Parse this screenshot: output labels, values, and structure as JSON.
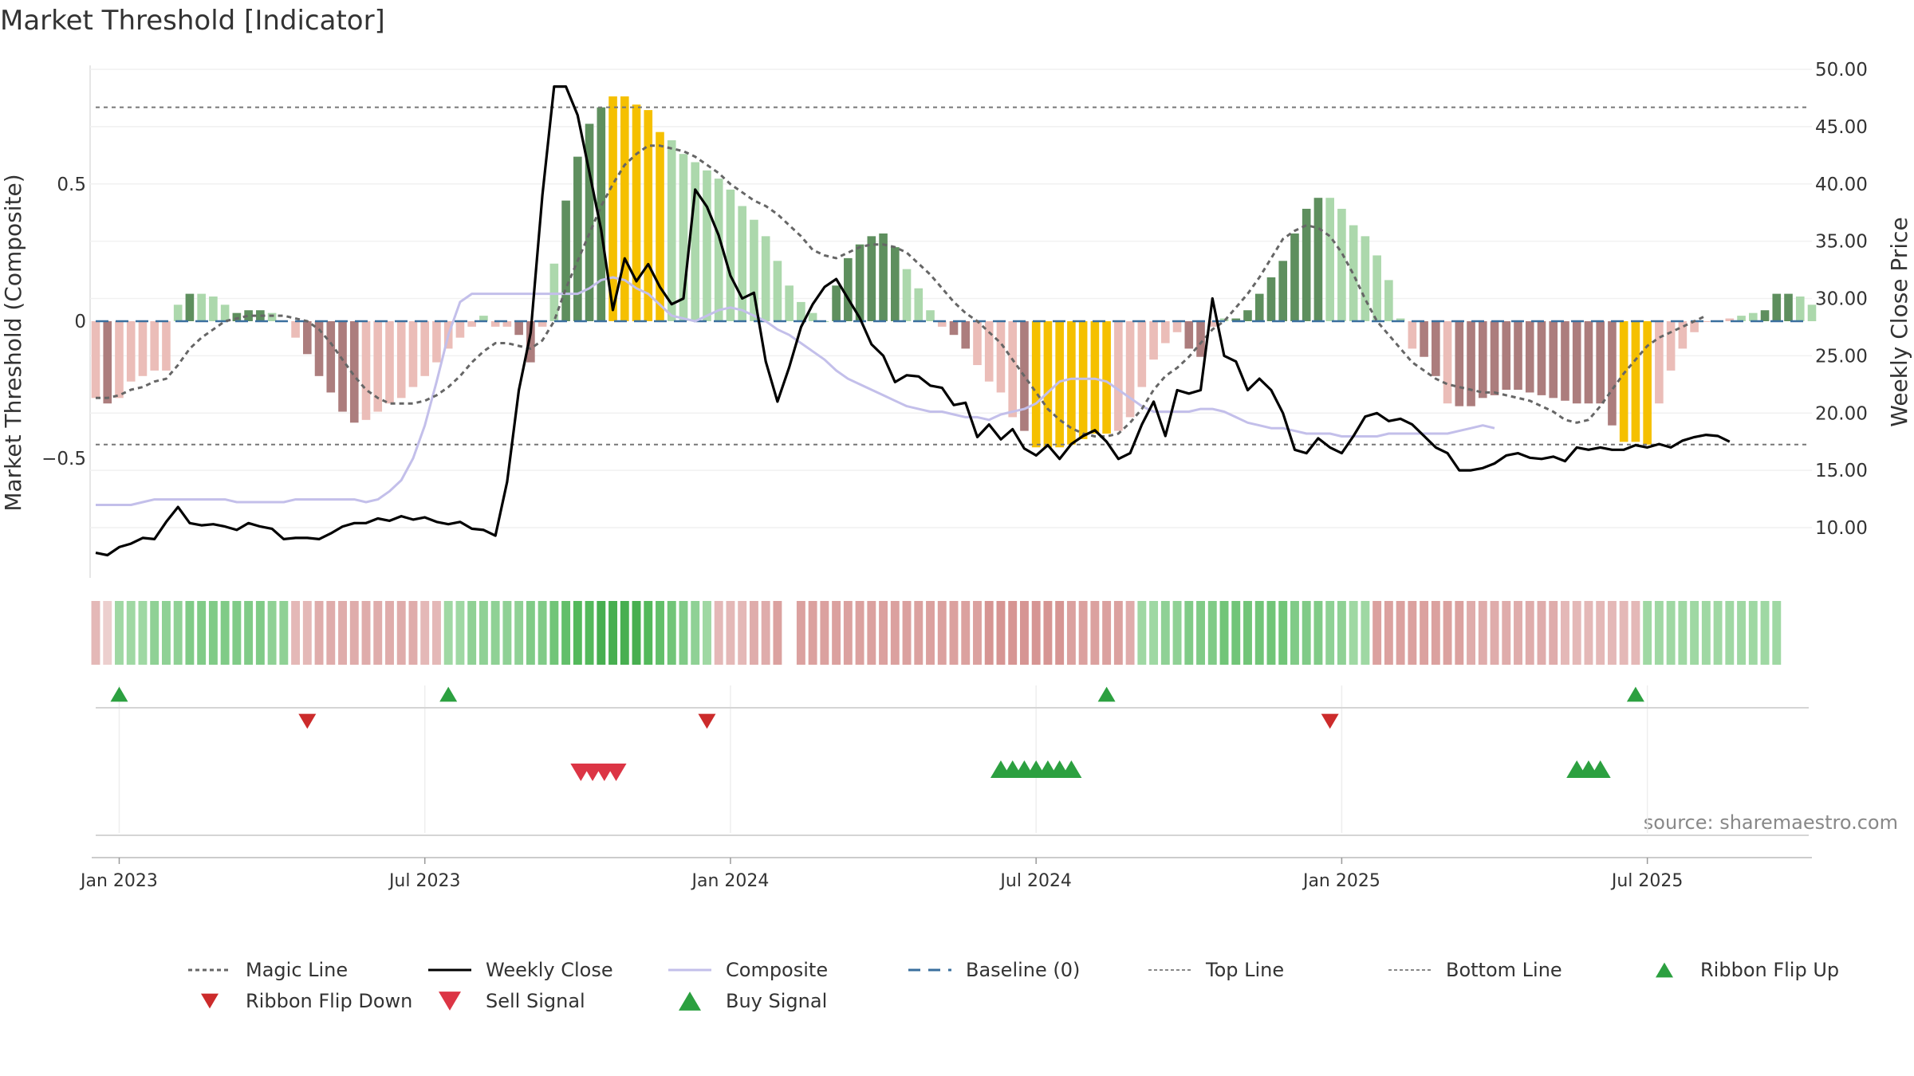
{
  "chart_data": {
    "type": "bar",
    "title": "Market Threshold [Indicator]",
    "ylabel": "Market Threshold (Composite)",
    "ylabel_right": "Weekly Close Price",
    "ylim": [
      -0.93,
      0.93
    ],
    "ylim_right": [
      4.8,
      51.0
    ],
    "y_ticks": [
      {
        "label": "0.5",
        "value": 0.5
      },
      {
        "label": "0",
        "value": 0
      },
      {
        "label": "−0.5",
        "value": -0.5
      }
    ],
    "y_right_ticks": [
      "10.00",
      "15.00",
      "20.00",
      "25.00",
      "30.00",
      "35.00",
      "40.00",
      "45.00",
      "50.00"
    ],
    "x_ticks": [
      {
        "label": "Jan 2023",
        "week": 2
      },
      {
        "label": "Jul 2023",
        "week": 28
      },
      {
        "label": "Jan 2024",
        "week": 54
      },
      {
        "label": "Jul 2024",
        "week": 80
      },
      {
        "label": "Jan 2025",
        "week": 106
      },
      {
        "label": "Jul 2025",
        "week": 132
      }
    ],
    "top_line": 0.78,
    "bottom_line": -0.45,
    "baseline": 0,
    "grid": true,
    "source": "source: sharemaestro.com",
    "colors": {
      "strong_pos": "#5e8f5e",
      "weak_pos": "#acd8ac",
      "strong_neg": "#ac7d7d",
      "weak_neg": "#ebbdb8",
      "signal": "#f5c000",
      "magic": "#666666",
      "close": "#000000",
      "composite": "#c3bfea",
      "baseline": "#3a6f9e",
      "ribbon_flip_up": "#2ca040",
      "ribbon_flip_down": "#cc2b2b",
      "sell": "#dc3545",
      "buy": "#2ca040"
    },
    "bars": [
      -0.28,
      -0.3,
      -0.28,
      -0.22,
      -0.2,
      -0.18,
      -0.18,
      0.06,
      0.1,
      0.1,
      0.09,
      0.06,
      0.03,
      0.04,
      0.04,
      0.03,
      0.0,
      -0.06,
      -0.12,
      -0.2,
      -0.26,
      -0.33,
      -0.37,
      -0.36,
      -0.33,
      -0.3,
      -0.28,
      -0.24,
      -0.2,
      -0.15,
      -0.1,
      -0.06,
      -0.02,
      0.02,
      -0.02,
      -0.02,
      -0.05,
      -0.15,
      -0.02,
      0.21,
      0.44,
      0.6,
      0.72,
      0.78,
      0.82,
      0.82,
      0.79,
      0.77,
      0.69,
      0.66,
      0.61,
      0.58,
      0.55,
      0.52,
      0.48,
      0.42,
      0.37,
      0.31,
      0.22,
      0.13,
      0.07,
      0.03,
      0.0,
      0.13,
      0.23,
      0.28,
      0.31,
      0.32,
      0.27,
      0.19,
      0.12,
      0.04,
      -0.02,
      -0.05,
      -0.1,
      -0.16,
      -0.22,
      -0.26,
      -0.35,
      -0.4,
      -0.46,
      -0.46,
      -0.46,
      -0.45,
      -0.43,
      -0.41,
      -0.41,
      -0.4,
      -0.35,
      -0.24,
      -0.14,
      -0.08,
      -0.04,
      -0.1,
      -0.13,
      -0.02,
      0.01,
      0.01,
      0.04,
      0.1,
      0.16,
      0.22,
      0.32,
      0.41,
      0.45,
      0.45,
      0.41,
      0.35,
      0.31,
      0.24,
      0.15,
      0.01,
      -0.1,
      -0.13,
      -0.2,
      -0.3,
      -0.31,
      -0.31,
      -0.28,
      -0.27,
      -0.25,
      -0.25,
      -0.26,
      -0.27,
      -0.28,
      -0.29,
      -0.3,
      -0.3,
      -0.3,
      -0.38,
      -0.44,
      -0.44,
      -0.45,
      -0.3,
      -0.18,
      -0.1,
      -0.04,
      0.0,
      0.0,
      0.01,
      0.02,
      0.03,
      0.04,
      0.1,
      0.1,
      0.09,
      0.06
    ],
    "bar_category": [
      "wn",
      "sn",
      "wn",
      "wn",
      "wn",
      "wn",
      "wn",
      "wp",
      "sp",
      "wp",
      "wp",
      "wp",
      "sp",
      "sp",
      "sp",
      "wp",
      "wn",
      "wn",
      "sn",
      "sn",
      "sn",
      "sn",
      "sn",
      "wn",
      "wn",
      "wn",
      "wn",
      "wn",
      "wn",
      "wn",
      "wn",
      "wn",
      "wn",
      "wp",
      "wn",
      "wn",
      "sn",
      "sn",
      "wn",
      "wp",
      "sp",
      "sp",
      "sp",
      "sp",
      "sig",
      "sig",
      "sig",
      "sig",
      "sig",
      "wp",
      "wp",
      "wp",
      "wp",
      "wp",
      "wp",
      "wp",
      "wp",
      "wp",
      "wp",
      "wp",
      "wp",
      "wp",
      "wp",
      "sp",
      "sp",
      "sp",
      "sp",
      "sp",
      "sp",
      "wp",
      "wp",
      "wp",
      "wn",
      "sn",
      "sn",
      "wn",
      "wn",
      "wn",
      "wn",
      "sn",
      "sig",
      "sig",
      "sig",
      "sig",
      "sig",
      "sig",
      "sig",
      "wn",
      "wn",
      "wn",
      "wn",
      "wn",
      "wn",
      "sn",
      "sn",
      "wn",
      "wp",
      "sp",
      "sp",
      "sp",
      "sp",
      "sp",
      "sp",
      "sp",
      "sp",
      "wp",
      "wp",
      "wp",
      "wp",
      "wp",
      "wp",
      "wp",
      "wn",
      "sn",
      "sn",
      "wn",
      "sn",
      "sn",
      "sn",
      "sn",
      "sn",
      "sn",
      "sn",
      "sn",
      "sn",
      "sn",
      "sn",
      "sn",
      "sn",
      "sn",
      "sig",
      "sig",
      "sig",
      "wn",
      "wn",
      "wn",
      "wn",
      "wn",
      "wn",
      "wn",
      "wp",
      "wp",
      "sp",
      "sp",
      "sp",
      "wp",
      "wp"
    ],
    "magic_line": [
      -0.28,
      -0.28,
      -0.27,
      -0.25,
      -0.24,
      -0.22,
      -0.21,
      -0.16,
      -0.1,
      -0.06,
      -0.03,
      0.0,
      0.01,
      0.02,
      0.02,
      0.02,
      0.02,
      0.01,
      0.0,
      -0.03,
      -0.08,
      -0.14,
      -0.2,
      -0.25,
      -0.28,
      -0.3,
      -0.3,
      -0.3,
      -0.29,
      -0.27,
      -0.24,
      -0.2,
      -0.15,
      -0.11,
      -0.08,
      -0.08,
      -0.09,
      -0.1,
      -0.07,
      0.0,
      0.12,
      0.22,
      0.32,
      0.42,
      0.5,
      0.57,
      0.61,
      0.64,
      0.64,
      0.63,
      0.62,
      0.6,
      0.57,
      0.54,
      0.5,
      0.47,
      0.44,
      0.42,
      0.39,
      0.35,
      0.31,
      0.26,
      0.24,
      0.23,
      0.25,
      0.27,
      0.28,
      0.28,
      0.27,
      0.25,
      0.21,
      0.17,
      0.12,
      0.07,
      0.03,
      0.0,
      -0.04,
      -0.08,
      -0.14,
      -0.2,
      -0.26,
      -0.32,
      -0.36,
      -0.39,
      -0.41,
      -0.42,
      -0.42,
      -0.41,
      -0.37,
      -0.32,
      -0.25,
      -0.2,
      -0.17,
      -0.13,
      -0.08,
      -0.03,
      0.0,
      0.05,
      0.1,
      0.16,
      0.23,
      0.3,
      0.33,
      0.35,
      0.34,
      0.31,
      0.25,
      0.17,
      0.08,
      0.0,
      -0.05,
      -0.1,
      -0.15,
      -0.18,
      -0.21,
      -0.23,
      -0.24,
      -0.25,
      -0.26,
      -0.26,
      -0.27,
      -0.28,
      -0.29,
      -0.31,
      -0.33,
      -0.36,
      -0.37,
      -0.36,
      -0.31,
      -0.25,
      -0.19,
      -0.14,
      -0.09,
      -0.06,
      -0.04,
      -0.02,
      0.0,
      0.02
    ],
    "weekly_close": [
      7.8,
      7.6,
      8.3,
      8.6,
      9.1,
      9.0,
      10.5,
      11.8,
      10.4,
      10.2,
      10.3,
      10.1,
      9.8,
      10.4,
      10.1,
      9.9,
      9.0,
      9.1,
      9.1,
      9.0,
      9.5,
      10.1,
      10.4,
      10.4,
      10.8,
      10.6,
      11.0,
      10.7,
      10.9,
      10.5,
      10.3,
      10.5,
      9.9,
      9.8,
      9.3,
      14.0,
      22.0,
      27.0,
      39.0,
      48.5,
      48.5,
      46.0,
      41.0,
      36.0,
      29.0,
      33.5,
      31.5,
      33.0,
      31.0,
      29.5,
      30.0,
      39.5,
      38.0,
      35.5,
      32.0,
      30.0,
      30.5,
      24.5,
      21.0,
      24.0,
      27.5,
      29.5,
      31.0,
      31.7,
      30.0,
      28.3,
      26.0,
      25.0,
      22.7,
      23.3,
      23.2,
      22.4,
      22.2,
      20.7,
      20.9,
      17.9,
      19.0,
      17.7,
      18.6,
      16.9,
      16.3,
      17.2,
      16.0,
      17.3,
      18.0,
      18.5,
      17.5,
      16.0,
      16.5,
      19.0,
      21.0,
      18.0,
      22.0,
      21.7,
      22.0,
      30.0,
      25.0,
      24.5,
      22.0,
      23.0,
      22.0,
      20.0,
      16.8,
      16.5,
      17.8,
      17.0,
      16.5,
      18.0,
      19.7,
      20.0,
      19.3,
      19.5,
      19.0,
      18.0,
      17.0,
      16.5,
      15.0,
      15.0,
      15.2,
      15.6,
      16.3,
      16.5,
      16.1,
      16.0,
      16.2,
      15.8,
      17.0,
      16.8,
      17.0,
      16.8,
      16.8,
      17.2,
      17.0,
      17.3,
      17.0,
      17.6,
      17.9,
      18.1,
      18.0,
      17.5
    ],
    "composite": [
      -0.67,
      -0.67,
      -0.67,
      -0.67,
      -0.66,
      -0.65,
      -0.65,
      -0.65,
      -0.65,
      -0.65,
      -0.65,
      -0.65,
      -0.66,
      -0.66,
      -0.66,
      -0.66,
      -0.66,
      -0.65,
      -0.65,
      -0.65,
      -0.65,
      -0.65,
      -0.65,
      -0.66,
      -0.65,
      -0.62,
      -0.58,
      -0.5,
      -0.38,
      -0.22,
      -0.05,
      0.07,
      0.1,
      0.1,
      0.1,
      0.1,
      0.1,
      0.1,
      0.1,
      0.1,
      0.1,
      0.1,
      0.12,
      0.15,
      0.16,
      0.15,
      0.12,
      0.1,
      0.06,
      0.02,
      0.01,
      0.0,
      0.02,
      0.04,
      0.05,
      0.04,
      0.02,
      0.0,
      -0.03,
      -0.05,
      -0.08,
      -0.11,
      -0.14,
      -0.18,
      -0.21,
      -0.23,
      -0.25,
      -0.27,
      -0.29,
      -0.31,
      -0.32,
      -0.33,
      -0.33,
      -0.34,
      -0.35,
      -0.35,
      -0.36,
      -0.34,
      -0.33,
      -0.32,
      -0.3,
      -0.26,
      -0.22,
      -0.21,
      -0.21,
      -0.21,
      -0.22,
      -0.25,
      -0.28,
      -0.31,
      -0.33,
      -0.33,
      -0.33,
      -0.33,
      -0.32,
      -0.32,
      -0.33,
      -0.35,
      -0.37,
      -0.38,
      -0.39,
      -0.39,
      -0.4,
      -0.41,
      -0.41,
      -0.41,
      -0.42,
      -0.42,
      -0.42,
      -0.42,
      -0.41,
      -0.41,
      -0.41,
      -0.41,
      -0.41,
      -0.41,
      -0.4,
      -0.39,
      -0.38,
      -0.39
    ],
    "ribbon": [
      -0.3,
      -0.1,
      0.3,
      0.3,
      0.3,
      0.4,
      0.4,
      0.4,
      0.5,
      0.5,
      0.5,
      0.5,
      0.5,
      0.5,
      0.5,
      0.4,
      0.4,
      -0.3,
      -0.3,
      -0.4,
      -0.4,
      -0.4,
      -0.4,
      -0.4,
      -0.4,
      -0.4,
      -0.4,
      -0.4,
      -0.3,
      -0.3,
      0.3,
      0.3,
      0.4,
      0.4,
      0.4,
      0.4,
      0.4,
      0.5,
      0.5,
      0.6,
      0.7,
      0.8,
      0.8,
      0.9,
      0.9,
      0.9,
      0.9,
      0.8,
      0.7,
      0.6,
      0.5,
      0.4,
      0.3,
      -0.3,
      -0.3,
      -0.3,
      -0.4,
      -0.4,
      -0.5,
      null,
      -0.5,
      -0.5,
      -0.5,
      -0.5,
      -0.5,
      -0.5,
      -0.5,
      -0.5,
      -0.5,
      -0.5,
      -0.5,
      -0.5,
      -0.5,
      -0.5,
      -0.5,
      -0.5,
      -0.6,
      -0.6,
      -0.6,
      -0.6,
      -0.6,
      -0.6,
      -0.6,
      -0.5,
      -0.5,
      -0.5,
      -0.5,
      -0.5,
      -0.4,
      0.3,
      0.3,
      0.4,
      0.4,
      0.5,
      0.5,
      0.5,
      0.6,
      0.6,
      0.6,
      0.6,
      0.6,
      0.6,
      0.5,
      0.5,
      0.5,
      0.4,
      0.4,
      0.3,
      0.3,
      -0.5,
      -0.5,
      -0.5,
      -0.5,
      -0.5,
      -0.5,
      -0.5,
      -0.5,
      -0.4,
      -0.4,
      -0.4,
      -0.4,
      -0.4,
      -0.4,
      -0.4,
      -0.4,
      -0.3,
      -0.3,
      -0.3,
      -0.3,
      -0.3,
      -0.3,
      -0.3,
      0.3,
      0.3,
      0.3,
      0.3,
      0.3,
      0.3,
      0.3,
      0.3,
      0.3,
      0.3,
      0.3,
      0.3
    ],
    "ribbon_flip_up": [
      2,
      30,
      86,
      131
    ],
    "ribbon_flip_down": [
      18,
      52,
      105
    ],
    "sell_signals": [
      41,
      42,
      43,
      44
    ],
    "buy_signals": [
      77,
      78,
      79,
      80,
      81,
      82,
      83,
      126,
      127,
      128
    ],
    "legend": [
      {
        "label": "Magic Line",
        "kind": "magic"
      },
      {
        "label": "Weekly Close",
        "kind": "close"
      },
      {
        "label": "Composite",
        "kind": "composite"
      },
      {
        "label": "Baseline (0)",
        "kind": "baseline"
      },
      {
        "label": "Top Line",
        "kind": "thresh"
      },
      {
        "label": "Bottom Line",
        "kind": "thresh"
      },
      {
        "label": "Ribbon Flip Up",
        "kind": "flip_up"
      },
      {
        "label": "Ribbon Flip Down",
        "kind": "flip_down"
      },
      {
        "label": "Sell Signal",
        "kind": "sell"
      },
      {
        "label": "Buy Signal",
        "kind": "buy"
      }
    ]
  }
}
